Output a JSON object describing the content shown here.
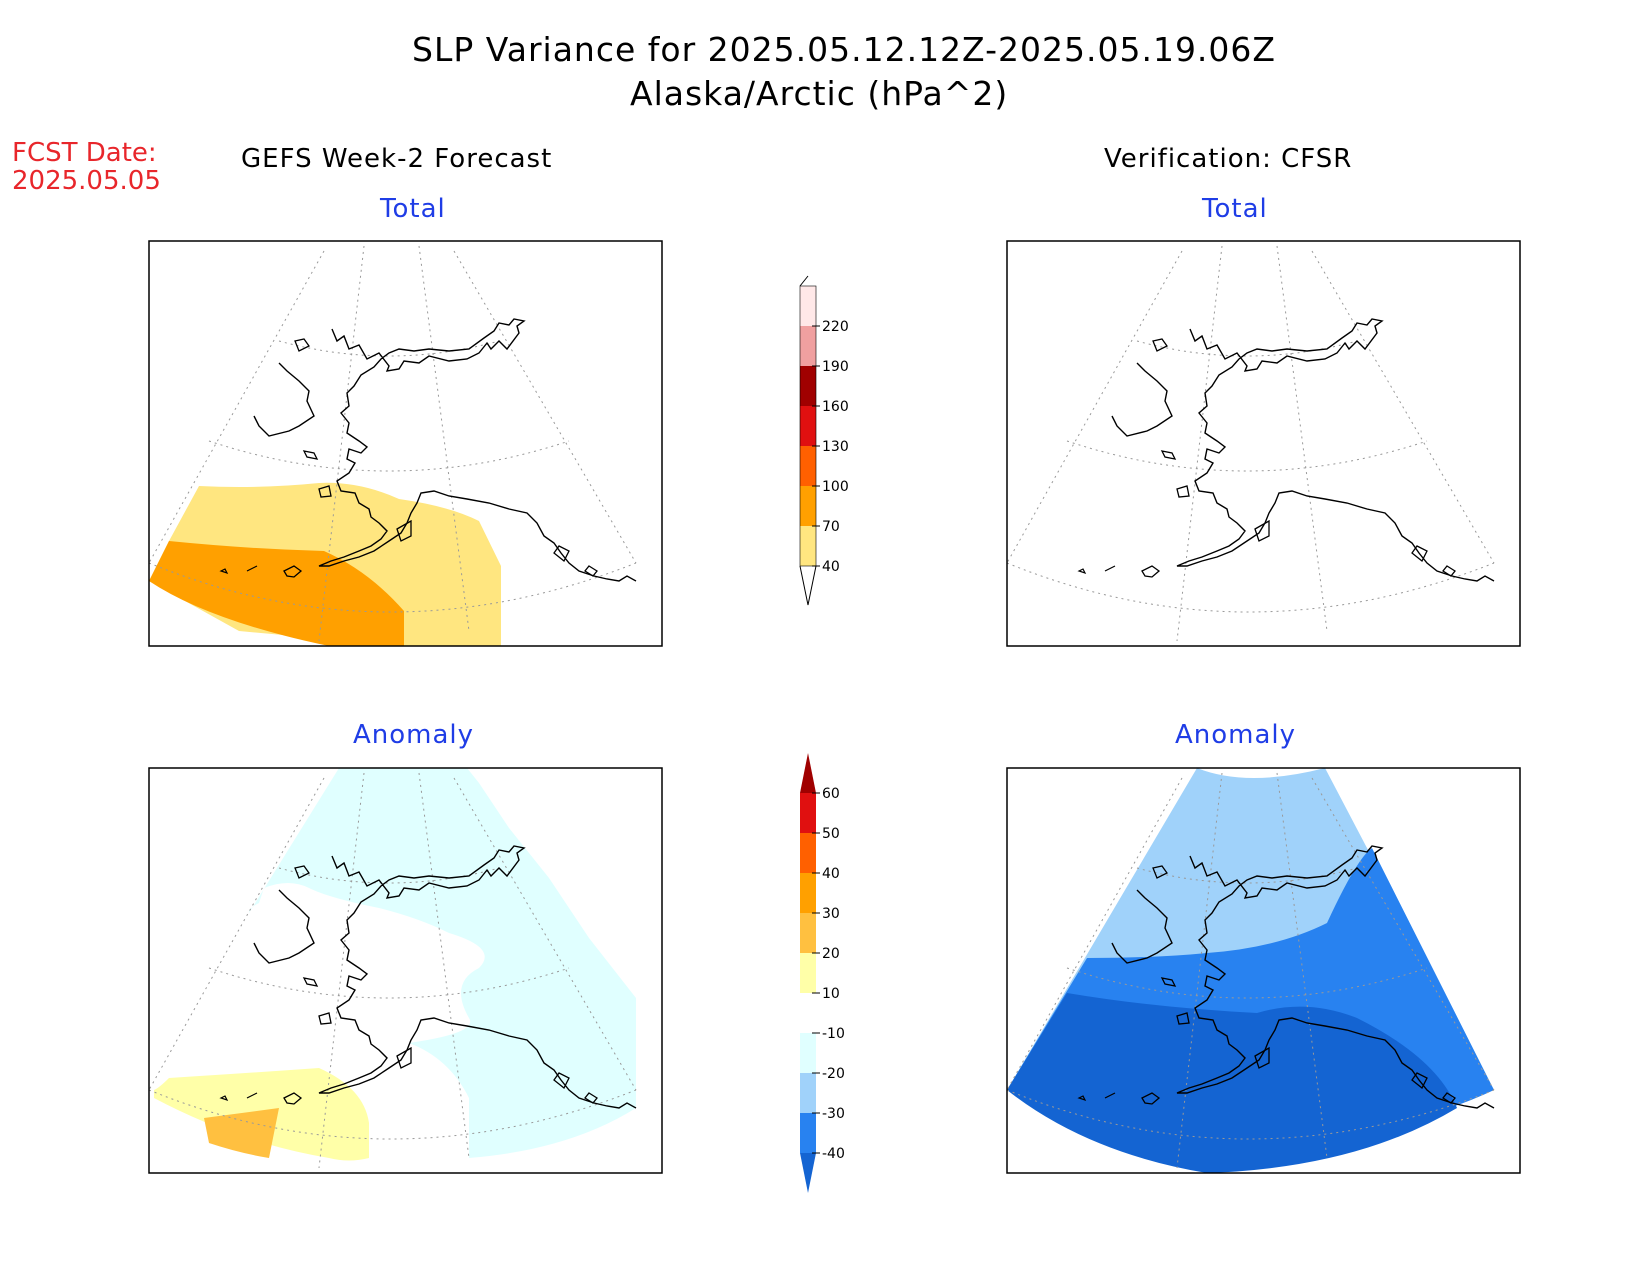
{
  "title_line1": "SLP Variance for 2025.05.12.12Z-2025.05.19.06Z",
  "title_line2": "Alaska/Arctic (hPa^2)",
  "fcst_label": "FCST Date:",
  "fcst_date": "2025.05.05",
  "left_header": "GEFS Week-2 Forecast",
  "right_header": "Verification: CFSR",
  "panels": {
    "fcst_total": {
      "label": "Total"
    },
    "verif_total": {
      "label": "Total"
    },
    "fcst_anomaly": {
      "label": "Anomaly"
    },
    "verif_anomaly": {
      "label": "Anomaly"
    }
  },
  "colorbar_total": {
    "levels": [
      "40",
      "70",
      "100",
      "130",
      "160",
      "190",
      "220"
    ],
    "colors": [
      "#ffe680",
      "#ffa000",
      "#ff6000",
      "#e01010",
      "#a00000",
      "#f0a0a0",
      "#ffe8e8"
    ]
  },
  "colorbar_anomaly": {
    "levels": [
      "60",
      "50",
      "40",
      "30",
      "20",
      "10",
      "-10",
      "-20",
      "-30",
      "-40"
    ],
    "colors": [
      "#a00000",
      "#e01010",
      "#ff6000",
      "#ffa000",
      "#ffc040",
      "#ffffa8",
      "#ffffff",
      "#e0ffff",
      "#a0d2fa",
      "#2882f0",
      "#1464d2"
    ]
  }
}
